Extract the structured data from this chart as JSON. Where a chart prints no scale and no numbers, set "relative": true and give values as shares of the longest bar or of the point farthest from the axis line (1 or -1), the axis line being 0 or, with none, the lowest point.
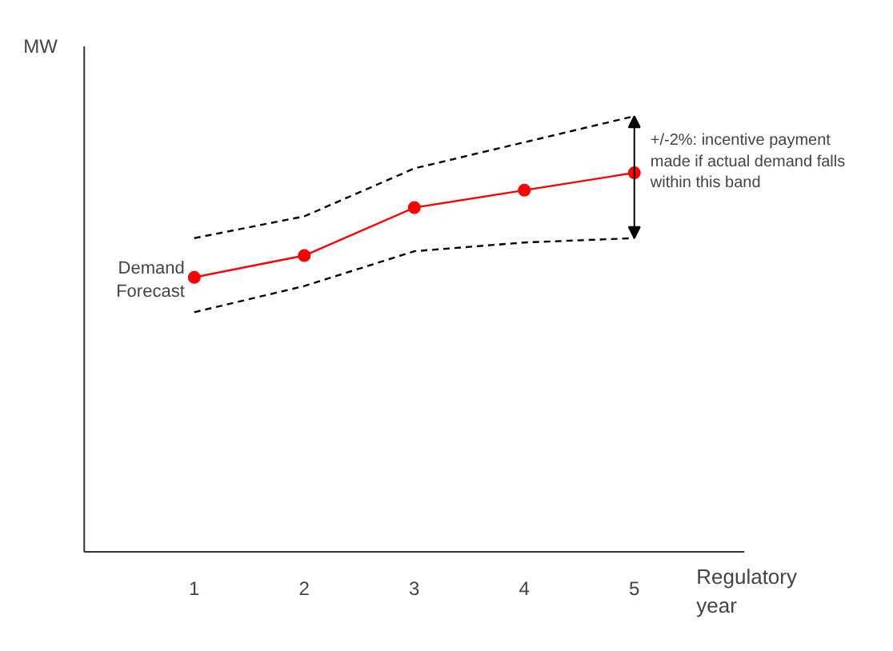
{
  "chart_data": {
    "type": "line",
    "relative": true,
    "ylabel": "MW",
    "xlabel": "Regulatory year",
    "x": [
      1,
      2,
      3,
      4,
      5
    ],
    "xlim": [
      0,
      6
    ],
    "xticks": [
      1,
      2,
      3,
      4,
      5
    ],
    "tick_labels": "x",
    "grid": false,
    "series": [
      {
        "name": "Demand Forecast",
        "color": "#ff0000",
        "values": [
          0.63,
          0.68,
          0.79,
          0.83,
          0.87
        ],
        "marker": "circle",
        "line_style": "solid"
      },
      {
        "color": "#000000",
        "values": [
          0.72,
          0.77,
          0.88,
          0.94,
          1
        ],
        "marker": "none",
        "line_style": "dashed"
      },
      {
        "color": "#000000",
        "values": [
          0.55,
          0.61,
          0.69,
          0.71,
          0.72
        ],
        "marker": "none",
        "line_style": "dashed"
      }
    ],
    "annotations": [
      "+/-2%: incentive payment made if actual demand falls within this band"
    ]
  }
}
